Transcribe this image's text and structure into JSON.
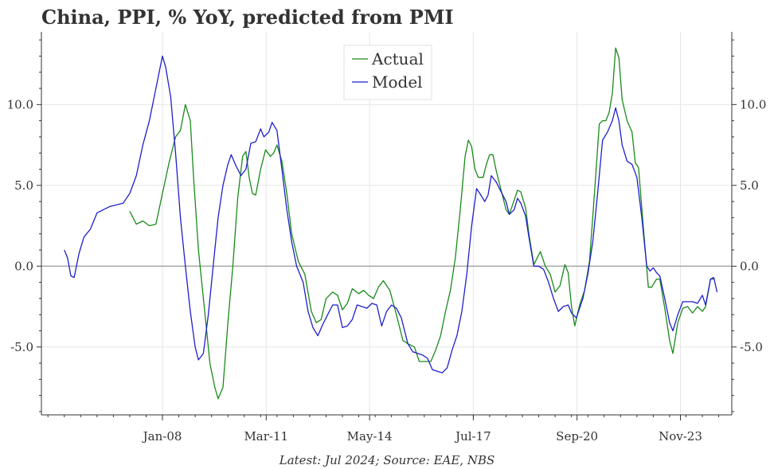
{
  "chart_data": {
    "type": "line",
    "title": "China, PPI, % YoY, predicted from PMI",
    "footnote": "Latest: Jul 2024; Source: EAE, NBS",
    "xlabel": "",
    "ylabel": "",
    "x_range": [
      2004.3,
      2025.4
    ],
    "ylim": [
      -9.2,
      14.5
    ],
    "y_ticks": [
      -5.0,
      0.0,
      5.0,
      10.0
    ],
    "y_tick_labels": [
      "-5.0",
      "0.0",
      "5.0",
      "10.0"
    ],
    "x_ticks": [
      2008.0,
      2011.17,
      2014.33,
      2017.5,
      2020.67,
      2023.83
    ],
    "x_tick_labels": [
      "Jan-08",
      "Mar-11",
      "May-14",
      "Jul-17",
      "Sep-20",
      "Nov-23"
    ],
    "grid": true,
    "legend_position": "top-center",
    "series": [
      {
        "name": "Actual",
        "color": "#1a8a1a",
        "points": [
          [
            2007.0,
            3.4
          ],
          [
            2007.2,
            2.6
          ],
          [
            2007.4,
            2.8
          ],
          [
            2007.6,
            2.5
          ],
          [
            2007.8,
            2.6
          ],
          [
            2008.0,
            4.5
          ],
          [
            2008.2,
            6.4
          ],
          [
            2008.4,
            8.0
          ],
          [
            2008.55,
            8.4
          ],
          [
            2008.7,
            10.0
          ],
          [
            2008.85,
            9.0
          ],
          [
            2008.95,
            5.5
          ],
          [
            2009.1,
            1.0
          ],
          [
            2009.3,
            -3.0
          ],
          [
            2009.45,
            -6.0
          ],
          [
            2009.6,
            -7.5
          ],
          [
            2009.7,
            -8.2
          ],
          [
            2009.85,
            -7.5
          ],
          [
            2010.0,
            -3.5
          ],
          [
            2010.15,
            0.0
          ],
          [
            2010.3,
            4.2
          ],
          [
            2010.45,
            6.8
          ],
          [
            2010.55,
            7.1
          ],
          [
            2010.65,
            5.5
          ],
          [
            2010.75,
            4.5
          ],
          [
            2010.85,
            4.4
          ],
          [
            2011.0,
            6.0
          ],
          [
            2011.15,
            7.2
          ],
          [
            2011.3,
            6.8
          ],
          [
            2011.4,
            7.0
          ],
          [
            2011.5,
            7.5
          ],
          [
            2011.65,
            6.5
          ],
          [
            2011.8,
            4.5
          ],
          [
            2011.95,
            2.0
          ],
          [
            2012.15,
            0.3
          ],
          [
            2012.35,
            -0.5
          ],
          [
            2012.55,
            -2.8
          ],
          [
            2012.7,
            -3.5
          ],
          [
            2012.85,
            -3.3
          ],
          [
            2013.0,
            -2.0
          ],
          [
            2013.2,
            -1.6
          ],
          [
            2013.35,
            -1.8
          ],
          [
            2013.5,
            -2.7
          ],
          [
            2013.65,
            -2.3
          ],
          [
            2013.8,
            -1.4
          ],
          [
            2014.0,
            -1.7
          ],
          [
            2014.15,
            -1.5
          ],
          [
            2014.3,
            -1.8
          ],
          [
            2014.45,
            -2.0
          ],
          [
            2014.6,
            -1.3
          ],
          [
            2014.75,
            -0.9
          ],
          [
            2014.95,
            -1.5
          ],
          [
            2015.15,
            -3.0
          ],
          [
            2015.35,
            -4.6
          ],
          [
            2015.5,
            -4.8
          ],
          [
            2015.7,
            -5.0
          ],
          [
            2015.85,
            -5.9
          ],
          [
            2016.0,
            -5.9
          ],
          [
            2016.2,
            -5.9
          ],
          [
            2016.35,
            -5.2
          ],
          [
            2016.5,
            -4.3
          ],
          [
            2016.65,
            -2.8
          ],
          [
            2016.8,
            -1.5
          ],
          [
            2016.95,
            0.5
          ],
          [
            2017.1,
            3.5
          ],
          [
            2017.25,
            6.8
          ],
          [
            2017.35,
            7.8
          ],
          [
            2017.45,
            7.4
          ],
          [
            2017.55,
            6.0
          ],
          [
            2017.65,
            5.5
          ],
          [
            2017.8,
            5.5
          ],
          [
            2017.9,
            6.3
          ],
          [
            2018.0,
            6.9
          ],
          [
            2018.1,
            6.9
          ],
          [
            2018.2,
            5.9
          ],
          [
            2018.35,
            4.7
          ],
          [
            2018.5,
            3.5
          ],
          [
            2018.6,
            3.2
          ],
          [
            2018.75,
            4.1
          ],
          [
            2018.85,
            4.7
          ],
          [
            2018.95,
            4.6
          ],
          [
            2019.1,
            3.6
          ],
          [
            2019.2,
            2.0
          ],
          [
            2019.35,
            0.1
          ],
          [
            2019.45,
            0.5
          ],
          [
            2019.55,
            0.9
          ],
          [
            2019.7,
            0.0
          ],
          [
            2019.85,
            -0.5
          ],
          [
            2020.0,
            -1.6
          ],
          [
            2020.15,
            -1.2
          ],
          [
            2020.3,
            0.1
          ],
          [
            2020.4,
            -0.4
          ],
          [
            2020.5,
            -2.5
          ],
          [
            2020.6,
            -3.7
          ],
          [
            2020.75,
            -2.4
          ],
          [
            2020.9,
            -1.5
          ],
          [
            2021.05,
            0.3
          ],
          [
            2021.2,
            4.4
          ],
          [
            2021.35,
            8.8
          ],
          [
            2021.45,
            9.0
          ],
          [
            2021.55,
            9.0
          ],
          [
            2021.65,
            9.5
          ],
          [
            2021.75,
            10.7
          ],
          [
            2021.85,
            13.5
          ],
          [
            2021.95,
            12.9
          ],
          [
            2022.05,
            10.3
          ],
          [
            2022.2,
            9.0
          ],
          [
            2022.35,
            8.3
          ],
          [
            2022.45,
            6.4
          ],
          [
            2022.55,
            6.1
          ],
          [
            2022.7,
            2.3
          ],
          [
            2022.85,
            -1.3
          ],
          [
            2022.95,
            -1.3
          ],
          [
            2023.1,
            -0.8
          ],
          [
            2023.2,
            -0.8
          ],
          [
            2023.35,
            -2.6
          ],
          [
            2023.5,
            -4.6
          ],
          [
            2023.6,
            -5.4
          ],
          [
            2023.75,
            -3.5
          ],
          [
            2023.9,
            -2.6
          ],
          [
            2024.05,
            -2.5
          ],
          [
            2024.2,
            -2.9
          ],
          [
            2024.35,
            -2.5
          ],
          [
            2024.5,
            -2.8
          ],
          [
            2024.6,
            -2.5
          ],
          [
            2024.75,
            -0.8
          ],
          [
            2024.85,
            -0.8
          ]
        ]
      },
      {
        "name": "Model",
        "color": "#1f1fcc",
        "points": [
          [
            2005.0,
            1.0
          ],
          [
            2005.1,
            0.5
          ],
          [
            2005.2,
            -0.6
          ],
          [
            2005.3,
            -0.7
          ],
          [
            2005.45,
            0.8
          ],
          [
            2005.6,
            1.8
          ],
          [
            2005.8,
            2.3
          ],
          [
            2006.0,
            3.3
          ],
          [
            2006.2,
            3.5
          ],
          [
            2006.4,
            3.7
          ],
          [
            2006.6,
            3.8
          ],
          [
            2006.8,
            3.9
          ],
          [
            2007.0,
            4.5
          ],
          [
            2007.2,
            5.6
          ],
          [
            2007.4,
            7.5
          ],
          [
            2007.6,
            9.0
          ],
          [
            2007.8,
            11.0
          ],
          [
            2008.0,
            13.0
          ],
          [
            2008.1,
            12.3
          ],
          [
            2008.25,
            10.5
          ],
          [
            2008.4,
            7.0
          ],
          [
            2008.55,
            3.0
          ],
          [
            2008.7,
            0.0
          ],
          [
            2008.85,
            -2.8
          ],
          [
            2009.0,
            -5.0
          ],
          [
            2009.1,
            -5.8
          ],
          [
            2009.25,
            -5.4
          ],
          [
            2009.4,
            -3.0
          ],
          [
            2009.55,
            0.0
          ],
          [
            2009.7,
            3.0
          ],
          [
            2009.85,
            5.0
          ],
          [
            2010.0,
            6.3
          ],
          [
            2010.1,
            6.9
          ],
          [
            2010.25,
            6.2
          ],
          [
            2010.4,
            5.6
          ],
          [
            2010.55,
            6.0
          ],
          [
            2010.7,
            7.6
          ],
          [
            2010.85,
            7.7
          ],
          [
            2011.0,
            8.5
          ],
          [
            2011.1,
            8.0
          ],
          [
            2011.25,
            8.3
          ],
          [
            2011.35,
            8.9
          ],
          [
            2011.5,
            8.4
          ],
          [
            2011.65,
            6.0
          ],
          [
            2011.8,
            3.5
          ],
          [
            2011.95,
            1.5
          ],
          [
            2012.1,
            0.0
          ],
          [
            2012.3,
            -1.0
          ],
          [
            2012.45,
            -2.8
          ],
          [
            2012.6,
            -3.8
          ],
          [
            2012.75,
            -4.3
          ],
          [
            2012.9,
            -3.6
          ],
          [
            2013.05,
            -3.0
          ],
          [
            2013.2,
            -2.4
          ],
          [
            2013.35,
            -2.4
          ],
          [
            2013.5,
            -3.8
          ],
          [
            2013.65,
            -3.7
          ],
          [
            2013.8,
            -3.3
          ],
          [
            2013.95,
            -2.4
          ],
          [
            2014.1,
            -2.5
          ],
          [
            2014.25,
            -2.6
          ],
          [
            2014.4,
            -2.3
          ],
          [
            2014.55,
            -2.4
          ],
          [
            2014.7,
            -3.7
          ],
          [
            2014.85,
            -2.8
          ],
          [
            2015.0,
            -2.4
          ],
          [
            2015.15,
            -2.6
          ],
          [
            2015.3,
            -3.2
          ],
          [
            2015.5,
            -4.8
          ],
          [
            2015.65,
            -5.3
          ],
          [
            2015.8,
            -5.4
          ],
          [
            2015.95,
            -5.5
          ],
          [
            2016.1,
            -5.7
          ],
          [
            2016.25,
            -6.4
          ],
          [
            2016.4,
            -6.5
          ],
          [
            2016.55,
            -6.6
          ],
          [
            2016.7,
            -6.3
          ],
          [
            2016.85,
            -5.2
          ],
          [
            2017.0,
            -4.3
          ],
          [
            2017.15,
            -2.8
          ],
          [
            2017.3,
            -0.5
          ],
          [
            2017.45,
            2.5
          ],
          [
            2017.6,
            4.8
          ],
          [
            2017.7,
            4.5
          ],
          [
            2017.85,
            4.0
          ],
          [
            2017.95,
            4.4
          ],
          [
            2018.05,
            5.6
          ],
          [
            2018.2,
            5.2
          ],
          [
            2018.35,
            4.6
          ],
          [
            2018.5,
            4.0
          ],
          [
            2018.6,
            3.2
          ],
          [
            2018.75,
            3.5
          ],
          [
            2018.85,
            4.2
          ],
          [
            2018.95,
            3.9
          ],
          [
            2019.1,
            3.1
          ],
          [
            2019.2,
            1.8
          ],
          [
            2019.35,
            0.0
          ],
          [
            2019.5,
            0.0
          ],
          [
            2019.65,
            -0.2
          ],
          [
            2019.8,
            -1.0
          ],
          [
            2019.95,
            -2.0
          ],
          [
            2020.1,
            -2.8
          ],
          [
            2020.25,
            -2.5
          ],
          [
            2020.4,
            -2.4
          ],
          [
            2020.5,
            -2.9
          ],
          [
            2020.65,
            -3.2
          ],
          [
            2020.85,
            -2.0
          ],
          [
            2021.0,
            -0.5
          ],
          [
            2021.15,
            1.5
          ],
          [
            2021.3,
            4.5
          ],
          [
            2021.45,
            7.8
          ],
          [
            2021.6,
            8.3
          ],
          [
            2021.75,
            9.0
          ],
          [
            2021.85,
            9.8
          ],
          [
            2021.95,
            9.0
          ],
          [
            2022.05,
            7.5
          ],
          [
            2022.2,
            6.5
          ],
          [
            2022.35,
            6.3
          ],
          [
            2022.5,
            5.5
          ],
          [
            2022.65,
            3.0
          ],
          [
            2022.8,
            0.0
          ],
          [
            2022.9,
            -0.3
          ],
          [
            2023.0,
            -0.1
          ],
          [
            2023.1,
            -0.4
          ],
          [
            2023.2,
            -0.6
          ],
          [
            2023.35,
            -2.0
          ],
          [
            2023.5,
            -3.5
          ],
          [
            2023.6,
            -4.0
          ],
          [
            2023.75,
            -3.0
          ],
          [
            2023.9,
            -2.2
          ],
          [
            2024.05,
            -2.2
          ],
          [
            2024.2,
            -2.2
          ],
          [
            2024.35,
            -2.3
          ],
          [
            2024.5,
            -1.8
          ],
          [
            2024.6,
            -2.4
          ],
          [
            2024.75,
            -0.8
          ],
          [
            2024.85,
            -0.7
          ],
          [
            2024.95,
            -1.6
          ]
        ]
      }
    ]
  }
}
